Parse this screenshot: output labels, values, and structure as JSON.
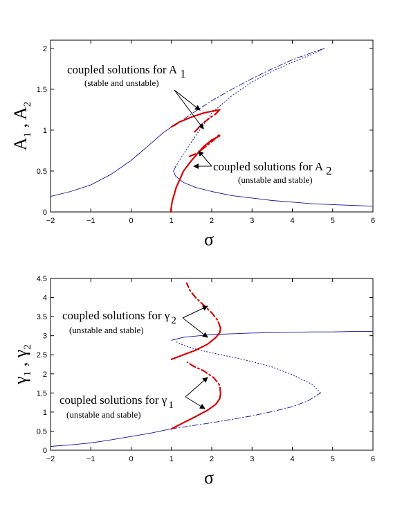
{
  "colors": {
    "base_curve": "#1010a0",
    "coupled_curve": "#dd0000",
    "axes": "#000000"
  },
  "chart_data": [
    {
      "type": "line",
      "xlabel": "σ",
      "ylabel": {
        "main": "A",
        "sub1": "1",
        "sep": " , ",
        "main2": "A",
        "sub2": "2"
      },
      "xlim": [
        -2,
        6
      ],
      "ylim": [
        0,
        2.1
      ],
      "xticks": [
        -2,
        -1,
        0,
        1,
        2,
        3,
        4,
        5,
        6
      ],
      "xtick_labels": [
        "−2",
        "−1",
        "0",
        "1",
        "2",
        "3",
        "4",
        "5",
        "6"
      ],
      "yticks": [
        0,
        0.5,
        1,
        1.5,
        2
      ],
      "ytick_labels": [
        "0",
        "0.5",
        "1",
        "1.5",
        "2"
      ],
      "series": [
        {
          "style": "solid-thin-blue",
          "points": [
            [
              -2,
              0.19
            ],
            [
              -1.5,
              0.25
            ],
            [
              -1,
              0.33
            ],
            [
              -0.5,
              0.46
            ],
            [
              0,
              0.63
            ],
            [
              0.5,
              0.84
            ],
            [
              0.8,
              0.97
            ],
            [
              1.0,
              1.04
            ],
            [
              1.1,
              1.06
            ]
          ]
        },
        {
          "style": "dashdot-blue",
          "points": [
            [
              1.1,
              1.06
            ],
            [
              1.5,
              1.2
            ],
            [
              2,
              1.36
            ],
            [
              2.5,
              1.5
            ],
            [
              3,
              1.63
            ],
            [
              3.5,
              1.75
            ],
            [
              4,
              1.86
            ],
            [
              4.5,
              1.95
            ],
            [
              4.8,
              2.0
            ]
          ]
        },
        {
          "style": "dotted-blue",
          "points": [
            [
              1.1,
              0.55
            ],
            [
              1.3,
              0.71
            ],
            [
              1.6,
              0.93
            ],
            [
              2,
              1.21
            ],
            [
              2.5,
              1.42
            ],
            [
              3,
              1.59
            ],
            [
              3.5,
              1.72
            ],
            [
              4,
              1.83
            ],
            [
              4.5,
              1.93
            ],
            [
              4.8,
              2.0
            ]
          ]
        },
        {
          "style": "solid-thin-blue",
          "points": [
            [
              1.1,
              0.55
            ],
            [
              1.05,
              0.5
            ],
            [
              1.1,
              0.44
            ],
            [
              1.3,
              0.36
            ],
            [
              1.6,
              0.3
            ],
            [
              2,
              0.25
            ],
            [
              2.5,
              0.2
            ],
            [
              3,
              0.17
            ],
            [
              3.5,
              0.14
            ],
            [
              4,
              0.12
            ],
            [
              4.5,
              0.1
            ],
            [
              5,
              0.09
            ],
            [
              5.5,
              0.08
            ],
            [
              6,
              0.07
            ]
          ]
        },
        {
          "style": "solid-thick-red",
          "points": [
            [
              1.0,
              1.04
            ],
            [
              1.2,
              1.1
            ],
            [
              1.5,
              1.16
            ],
            [
              1.8,
              1.21
            ],
            [
              2.0,
              1.23
            ],
            [
              2.2,
              1.25
            ]
          ]
        },
        {
          "style": "dashdot-thick-red",
          "points": [
            [
              1.58,
              0.98
            ],
            [
              1.75,
              1.07
            ],
            [
              1.95,
              1.15
            ],
            [
              2.1,
              1.2
            ],
            [
              2.2,
              1.25
            ]
          ]
        },
        {
          "style": "solid-thick-red",
          "points": [
            [
              0.98,
              0
            ],
            [
              1.02,
              0.13
            ],
            [
              1.12,
              0.3
            ],
            [
              1.3,
              0.5
            ],
            [
              1.5,
              0.63
            ],
            [
              1.8,
              0.8
            ],
            [
              2.0,
              0.88
            ],
            [
              2.2,
              0.93
            ]
          ]
        },
        {
          "style": "dashdot-thick-red",
          "points": [
            [
              1.45,
              0.68
            ],
            [
              1.65,
              0.72
            ],
            [
              1.85,
              0.8
            ],
            [
              2.05,
              0.88
            ],
            [
              2.2,
              0.95
            ]
          ]
        }
      ],
      "annotations": [
        {
          "text": "coupled solutions for A",
          "sub": "1"
        },
        {
          "text": "(stable and unstable)"
        },
        {
          "text": "coupled solutions for A",
          "sub": "2"
        },
        {
          "text": "(unstable and stable)"
        }
      ]
    },
    {
      "type": "line",
      "xlabel": "σ",
      "ylabel": {
        "main": "γ",
        "sub1": "1",
        "sep": " , ",
        "main2": "γ",
        "sub2": "2"
      },
      "xlim": [
        -2,
        6
      ],
      "ylim": [
        0,
        4.5
      ],
      "xticks": [
        -2,
        -1,
        0,
        1,
        2,
        3,
        4,
        5,
        6
      ],
      "xtick_labels": [
        "−2",
        "−1",
        "0",
        "1",
        "2",
        "3",
        "4",
        "5",
        "6"
      ],
      "yticks": [
        0,
        0.5,
        1,
        1.5,
        2,
        2.5,
        3,
        3.5,
        4,
        4.5
      ],
      "ytick_labels": [
        "0",
        "0.5",
        "1",
        "1.5",
        "2",
        "2.5",
        "3",
        "3.5",
        "4",
        "4.5"
      ],
      "series": [
        {
          "style": "solid-thin-blue",
          "points": [
            [
              -2,
              0.1
            ],
            [
              -1.5,
              0.14
            ],
            [
              -1,
              0.19
            ],
            [
              -0.5,
              0.27
            ],
            [
              0,
              0.36
            ],
            [
              0.5,
              0.45
            ],
            [
              1.0,
              0.56
            ]
          ]
        },
        {
          "style": "dashdot-blue",
          "points": [
            [
              1.0,
              0.56
            ],
            [
              1.5,
              0.64
            ],
            [
              2,
              0.72
            ],
            [
              2.5,
              0.81
            ],
            [
              3,
              0.9
            ],
            [
              3.5,
              1.01
            ],
            [
              4,
              1.14
            ],
            [
              4.4,
              1.3
            ],
            [
              4.7,
              1.5
            ]
          ]
        },
        {
          "style": "dotted-blue",
          "points": [
            [
              4.7,
              1.5
            ],
            [
              4.5,
              1.72
            ],
            [
              4,
              1.98
            ],
            [
              3.5,
              2.18
            ],
            [
              3,
              2.32
            ],
            [
              2.5,
              2.44
            ],
            [
              2,
              2.55
            ],
            [
              1.6,
              2.65
            ],
            [
              1.3,
              2.75
            ],
            [
              1.1,
              2.85
            ]
          ]
        },
        {
          "style": "solid-thin-blue",
          "points": [
            [
              1.0,
              2.88
            ],
            [
              1.3,
              2.96
            ],
            [
              1.7,
              3.0
            ],
            [
              2,
              3.03
            ],
            [
              2.5,
              3.05
            ],
            [
              3,
              3.07
            ],
            [
              3.5,
              3.08
            ],
            [
              4,
              3.09
            ],
            [
              4.5,
              3.1
            ],
            [
              5,
              3.1
            ],
            [
              5.5,
              3.11
            ],
            [
              6,
              3.11
            ]
          ]
        },
        {
          "style": "solid-thick-red",
          "points": [
            [
              1.0,
              0.56
            ],
            [
              1.3,
              0.72
            ],
            [
              1.6,
              0.88
            ],
            [
              1.9,
              1.05
            ],
            [
              2.1,
              1.2
            ],
            [
              2.2,
              1.35
            ],
            [
              2.22,
              1.48
            ]
          ]
        },
        {
          "style": "dashdot-thick-red",
          "points": [
            [
              2.22,
              1.48
            ],
            [
              2.2,
              1.7
            ],
            [
              2.05,
              1.9
            ],
            [
              1.8,
              2.08
            ],
            [
              1.55,
              2.2
            ],
            [
              1.4,
              2.3
            ]
          ]
        },
        {
          "style": "solid-thick-red",
          "points": [
            [
              1.0,
              2.38
            ],
            [
              1.3,
              2.5
            ],
            [
              1.6,
              2.62
            ],
            [
              1.9,
              2.78
            ],
            [
              2.1,
              2.95
            ],
            [
              2.2,
              3.08
            ],
            [
              2.22,
              3.2
            ]
          ]
        },
        {
          "style": "dashdot-thick-red",
          "points": [
            [
              2.22,
              3.2
            ],
            [
              2.15,
              3.4
            ],
            [
              2.0,
              3.6
            ],
            [
              1.8,
              3.8
            ],
            [
              1.6,
              4.0
            ],
            [
              1.45,
              4.2
            ],
            [
              1.38,
              4.38
            ]
          ]
        }
      ],
      "annotations": [
        {
          "text": "coupled solutions for γ",
          "sub": "2"
        },
        {
          "text": "(unstable and stable)"
        },
        {
          "text": "coupled solutions for γ",
          "sub": "1"
        },
        {
          "text": "(unstable and stable)"
        }
      ]
    }
  ]
}
